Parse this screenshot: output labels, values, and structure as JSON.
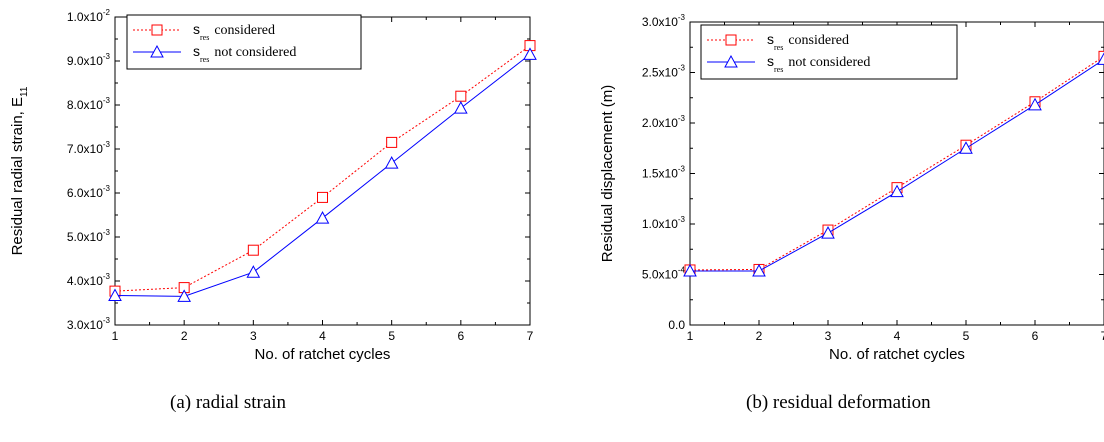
{
  "chart_data": [
    {
      "type": "line",
      "panel": "a",
      "caption": "(a) radial strain",
      "xlabel": "No. of ratchet cycles",
      "ylabel": "Residual radial strain, E",
      "ylabel_sub": "11",
      "xlim": [
        1,
        7
      ],
      "ylim": [
        0.003,
        0.01
      ],
      "x_ticks": [
        1,
        2,
        3,
        4,
        5,
        6,
        7
      ],
      "y_ticks": [
        {
          "value": 0.003,
          "mant": "3.0x10",
          "exp": "-3"
        },
        {
          "value": 0.004,
          "mant": "4.0x10",
          "exp": "-3"
        },
        {
          "value": 0.005,
          "mant": "5.0x10",
          "exp": "-3"
        },
        {
          "value": 0.006,
          "mant": "6.0x10",
          "exp": "-3"
        },
        {
          "value": 0.007,
          "mant": "7.0x10",
          "exp": "-3"
        },
        {
          "value": 0.008,
          "mant": "8.0x10",
          "exp": "-3"
        },
        {
          "value": 0.009,
          "mant": "9.0x10",
          "exp": "-3"
        },
        {
          "value": 0.01,
          "mant": "1.0x10",
          "exp": "-2"
        }
      ],
      "legend_position": "top-left",
      "x": [
        1,
        2,
        3,
        4,
        5,
        6,
        7
      ],
      "series": [
        {
          "sym": "s",
          "sub": "res",
          "rest": "considered",
          "color": "#ff0000",
          "dash": "dotted",
          "marker": "square",
          "values": [
            0.00377,
            0.00385,
            0.0047,
            0.0059,
            0.00715,
            0.0082,
            0.00935
          ]
        },
        {
          "sym": "s",
          "sub": "res",
          "rest": "not considered",
          "color": "#0000ff",
          "dash": "solid",
          "marker": "triangle",
          "values": [
            0.00367,
            0.00365,
            0.0042,
            0.00543,
            0.00668,
            0.00793,
            0.00915
          ]
        }
      ]
    },
    {
      "type": "line",
      "panel": "b",
      "caption": "(b) residual deformation",
      "xlabel": "No. of ratchet cycles",
      "ylabel": "Residual displacement (m)",
      "ylabel_sub": "",
      "xlim": [
        1,
        7
      ],
      "ylim": [
        0,
        0.003
      ],
      "x_ticks": [
        1,
        2,
        3,
        4,
        5,
        6,
        7
      ],
      "y_ticks": [
        {
          "value": 0,
          "mant": "0.0",
          "exp": ""
        },
        {
          "value": 0.0005,
          "mant": "5.0x10",
          "exp": "-4"
        },
        {
          "value": 0.001,
          "mant": "1.0x10",
          "exp": "-3"
        },
        {
          "value": 0.0015,
          "mant": "1.5x10",
          "exp": "-3"
        },
        {
          "value": 0.002,
          "mant": "2.0x10",
          "exp": "-3"
        },
        {
          "value": 0.0025,
          "mant": "2.5x10",
          "exp": "-3"
        },
        {
          "value": 0.003,
          "mant": "3.0x10",
          "exp": "-3"
        }
      ],
      "legend_position": "top-left",
      "x": [
        1,
        2,
        3,
        4,
        5,
        6,
        7
      ],
      "series": [
        {
          "sym": "s",
          "sub": "res",
          "rest": "considered",
          "color": "#ff0000",
          "dash": "dotted",
          "marker": "square",
          "values": [
            0.000545,
            0.00055,
            0.00094,
            0.00136,
            0.00178,
            0.00221,
            0.00266
          ]
        },
        {
          "sym": "s",
          "sub": "res",
          "rest": "not considered",
          "color": "#0000ff",
          "dash": "solid",
          "marker": "triangle",
          "values": [
            0.000535,
            0.000535,
            0.00091,
            0.00132,
            0.00175,
            0.00218,
            0.00263
          ]
        }
      ]
    }
  ]
}
